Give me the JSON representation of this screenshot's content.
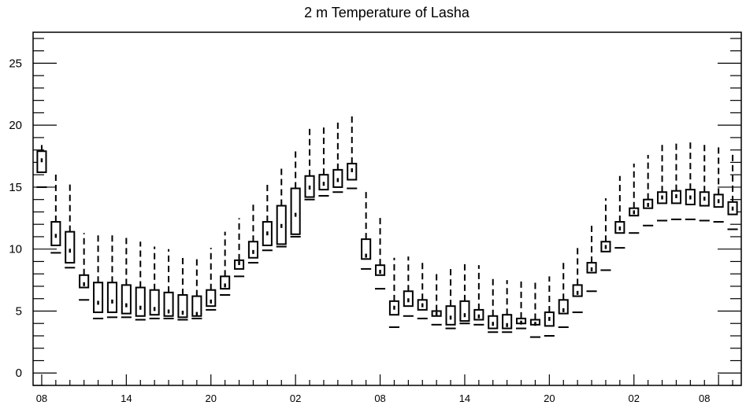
{
  "chart_data": {
    "type": "box",
    "title": "2 m Temperature of Lasha",
    "xlabel": "",
    "ylabel": "",
    "ylim": [
      -1,
      27.5
    ],
    "yticks": [
      0,
      5,
      10,
      15,
      20,
      25
    ],
    "y_minor_step": 1,
    "xlim": [
      -0.5,
      47.5
    ],
    "xticks": [
      {
        "x": 0,
        "label": "08"
      },
      {
        "x": 6,
        "label": "14"
      },
      {
        "x": 12,
        "label": "20"
      },
      {
        "x": 18,
        "label": "02"
      },
      {
        "x": 24,
        "label": "08"
      },
      {
        "x": 30,
        "label": "14"
      },
      {
        "x": 36,
        "label": "20"
      },
      {
        "x": 42,
        "label": "02"
      },
      {
        "x": 47,
        "label": "08"
      }
    ],
    "boxes": [
      {
        "x": 0,
        "min": 15.0,
        "q1": 16.2,
        "median": 17.2,
        "q3": 17.9,
        "max": 18.4
      },
      {
        "x": 1,
        "min": 9.7,
        "q1": 10.3,
        "median": 11.1,
        "q3": 12.2,
        "max": 16.3
      },
      {
        "x": 2,
        "min": 8.5,
        "q1": 8.9,
        "median": 9.9,
        "q3": 11.4,
        "max": 15.3
      },
      {
        "x": 3,
        "min": 5.9,
        "q1": 6.9,
        "median": 7.2,
        "q3": 7.9,
        "max": 11.3
      },
      {
        "x": 4,
        "min": 4.4,
        "q1": 4.9,
        "median": 5.7,
        "q3": 7.3,
        "max": 11.3
      },
      {
        "x": 5,
        "min": 4.5,
        "q1": 4.9,
        "median": 5.8,
        "q3": 7.3,
        "max": 11.2
      },
      {
        "x": 6,
        "min": 4.5,
        "q1": 4.8,
        "median": 5.5,
        "q3": 7.1,
        "max": 10.9
      },
      {
        "x": 7,
        "min": 4.3,
        "q1": 4.6,
        "median": 5.3,
        "q3": 6.9,
        "max": 10.6
      },
      {
        "x": 8,
        "min": 4.4,
        "q1": 4.7,
        "median": 5.2,
        "q3": 6.7,
        "max": 10.2
      },
      {
        "x": 9,
        "min": 4.4,
        "q1": 4.6,
        "median": 5.0,
        "q3": 6.5,
        "max": 10.0
      },
      {
        "x": 10,
        "min": 4.3,
        "q1": 4.5,
        "median": 4.9,
        "q3": 6.3,
        "max": 9.6
      },
      {
        "x": 11,
        "min": 4.4,
        "q1": 4.6,
        "median": 4.8,
        "q3": 6.2,
        "max": 9.3
      },
      {
        "x": 12,
        "min": 5.1,
        "q1": 5.4,
        "median": 5.8,
        "q3": 6.7,
        "max": 10.1
      },
      {
        "x": 13,
        "min": 6.3,
        "q1": 6.8,
        "median": 7.1,
        "q3": 7.8,
        "max": 11.4
      },
      {
        "x": 14,
        "min": 7.8,
        "q1": 8.4,
        "median": 8.9,
        "q3": 9.1,
        "max": 12.5
      },
      {
        "x": 15,
        "min": 8.9,
        "q1": 9.3,
        "median": 9.8,
        "q3": 10.6,
        "max": 13.9
      },
      {
        "x": 16,
        "min": 9.9,
        "q1": 10.3,
        "median": 11.3,
        "q3": 12.2,
        "max": 15.4
      },
      {
        "x": 17,
        "min": 10.2,
        "q1": 10.4,
        "median": 11.9,
        "q3": 13.5,
        "max": 16.7
      },
      {
        "x": 18,
        "min": 11.0,
        "q1": 11.2,
        "median": 12.8,
        "q3": 14.9,
        "max": 18.1
      },
      {
        "x": 19,
        "min": 14.0,
        "q1": 14.2,
        "median": 15.0,
        "q3": 15.9,
        "max": 19.7
      },
      {
        "x": 20,
        "min": 14.3,
        "q1": 14.8,
        "median": 15.3,
        "q3": 16.0,
        "max": 20.1
      },
      {
        "x": 21,
        "min": 14.6,
        "q1": 15.0,
        "median": 15.6,
        "q3": 16.4,
        "max": 20.5
      },
      {
        "x": 22,
        "min": 14.9,
        "q1": 15.6,
        "median": 16.4,
        "q3": 16.9,
        "max": 21.0
      },
      {
        "x": 23,
        "min": 8.4,
        "q1": 9.2,
        "median": 9.5,
        "q3": 10.8,
        "max": 14.9
      },
      {
        "x": 24,
        "min": 6.8,
        "q1": 7.9,
        "median": 8.2,
        "q3": 8.7,
        "max": 12.6
      },
      {
        "x": 25,
        "min": 3.7,
        "q1": 4.7,
        "median": 5.3,
        "q3": 5.8,
        "max": 9.3
      },
      {
        "x": 26,
        "min": 4.6,
        "q1": 5.4,
        "median": 5.9,
        "q3": 6.6,
        "max": 9.4
      },
      {
        "x": 27,
        "min": 4.4,
        "q1": 5.1,
        "median": 5.5,
        "q3": 5.9,
        "max": 9.2
      },
      {
        "x": 28,
        "min": 3.9,
        "q1": 4.6,
        "median": 4.8,
        "q3": 5.0,
        "max": 8.3
      },
      {
        "x": 29,
        "min": 3.6,
        "q1": 3.9,
        "median": 4.5,
        "q3": 5.4,
        "max": 8.6
      },
      {
        "x": 30,
        "min": 4.0,
        "q1": 4.2,
        "median": 4.7,
        "q3": 5.8,
        "max": 9.0
      },
      {
        "x": 31,
        "min": 3.9,
        "q1": 4.3,
        "median": 4.6,
        "q3": 5.1,
        "max": 8.7
      },
      {
        "x": 32,
        "min": 3.3,
        "q1": 3.6,
        "median": 4.0,
        "q3": 4.6,
        "max": 7.6
      },
      {
        "x": 33,
        "min": 3.3,
        "q1": 3.6,
        "median": 3.9,
        "q3": 4.7,
        "max": 7.5
      },
      {
        "x": 34,
        "min": 3.6,
        "q1": 4.0,
        "median": 4.1,
        "q3": 4.4,
        "max": 7.6
      },
      {
        "x": 35,
        "min": 2.9,
        "q1": 3.9,
        "median": 4.0,
        "q3": 4.3,
        "max": 7.6
      },
      {
        "x": 36,
        "min": 3.0,
        "q1": 3.8,
        "median": 4.4,
        "q3": 4.9,
        "max": 7.8
      },
      {
        "x": 37,
        "min": 3.7,
        "q1": 4.8,
        "median": 5.1,
        "q3": 5.9,
        "max": 8.9
      },
      {
        "x": 38,
        "min": 4.9,
        "q1": 6.2,
        "median": 6.5,
        "q3": 7.1,
        "max": 10.3
      },
      {
        "x": 39,
        "min": 6.6,
        "q1": 8.1,
        "median": 8.4,
        "q3": 8.9,
        "max": 12.2
      },
      {
        "x": 40,
        "min": 8.3,
        "q1": 9.8,
        "median": 10.2,
        "q3": 10.6,
        "max": 14.1
      },
      {
        "x": 41,
        "min": 10.1,
        "q1": 11.3,
        "median": 11.7,
        "q3": 12.2,
        "max": 15.9
      },
      {
        "x": 42,
        "min": 11.3,
        "q1": 12.7,
        "median": 13.0,
        "q3": 13.3,
        "max": 16.9
      },
      {
        "x": 43,
        "min": 11.9,
        "q1": 13.3,
        "median": 13.6,
        "q3": 14.0,
        "max": 17.6
      },
      {
        "x": 44,
        "min": 12.3,
        "q1": 13.7,
        "median": 14.2,
        "q3": 14.6,
        "max": 18.5
      },
      {
        "x": 45,
        "min": 12.4,
        "q1": 13.7,
        "median": 14.3,
        "q3": 14.7,
        "max": 18.7
      },
      {
        "x": 46,
        "min": 12.4,
        "q1": 13.6,
        "median": 14.2,
        "q3": 14.8,
        "max": 18.7
      },
      {
        "x": 47,
        "min": 12.3,
        "q1": 13.5,
        "median": 14.1,
        "q3": 14.6,
        "max": 18.6
      },
      {
        "x": 48,
        "min": 12.2,
        "q1": 13.4,
        "median": 13.9,
        "q3": 14.4,
        "max": 18.5
      },
      {
        "x": 49,
        "min": 11.6,
        "q1": 12.8,
        "median": 13.3,
        "q3": 13.8,
        "max": 17.9
      }
    ],
    "grid": false,
    "legend": "none"
  }
}
